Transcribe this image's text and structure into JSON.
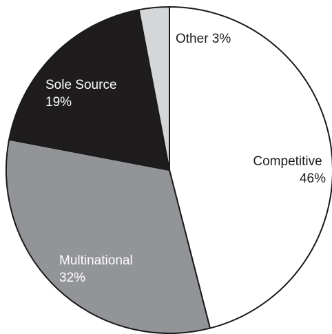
{
  "chart_data": {
    "type": "pie",
    "title": "",
    "start_angle_deg": 0,
    "direction": "clockwise",
    "slices": [
      {
        "label": "Competitive",
        "percent_text": "46%",
        "value": 46,
        "color": "#ffffff",
        "text_color": "#1a1a1a"
      },
      {
        "label": "Multinational",
        "percent_text": "32%",
        "value": 32,
        "color": "#929497",
        "text_color": "#ffffff"
      },
      {
        "label": "Sole Source",
        "percent_text": "19%",
        "value": 19,
        "color": "#1f1c1d",
        "text_color": "#ffffff"
      },
      {
        "label": "Other 3%",
        "percent_text": "",
        "value": 3,
        "color": "#d5d6d8",
        "text_color": "#1a1a1a"
      }
    ],
    "outline_color": "#1a1a1a"
  }
}
